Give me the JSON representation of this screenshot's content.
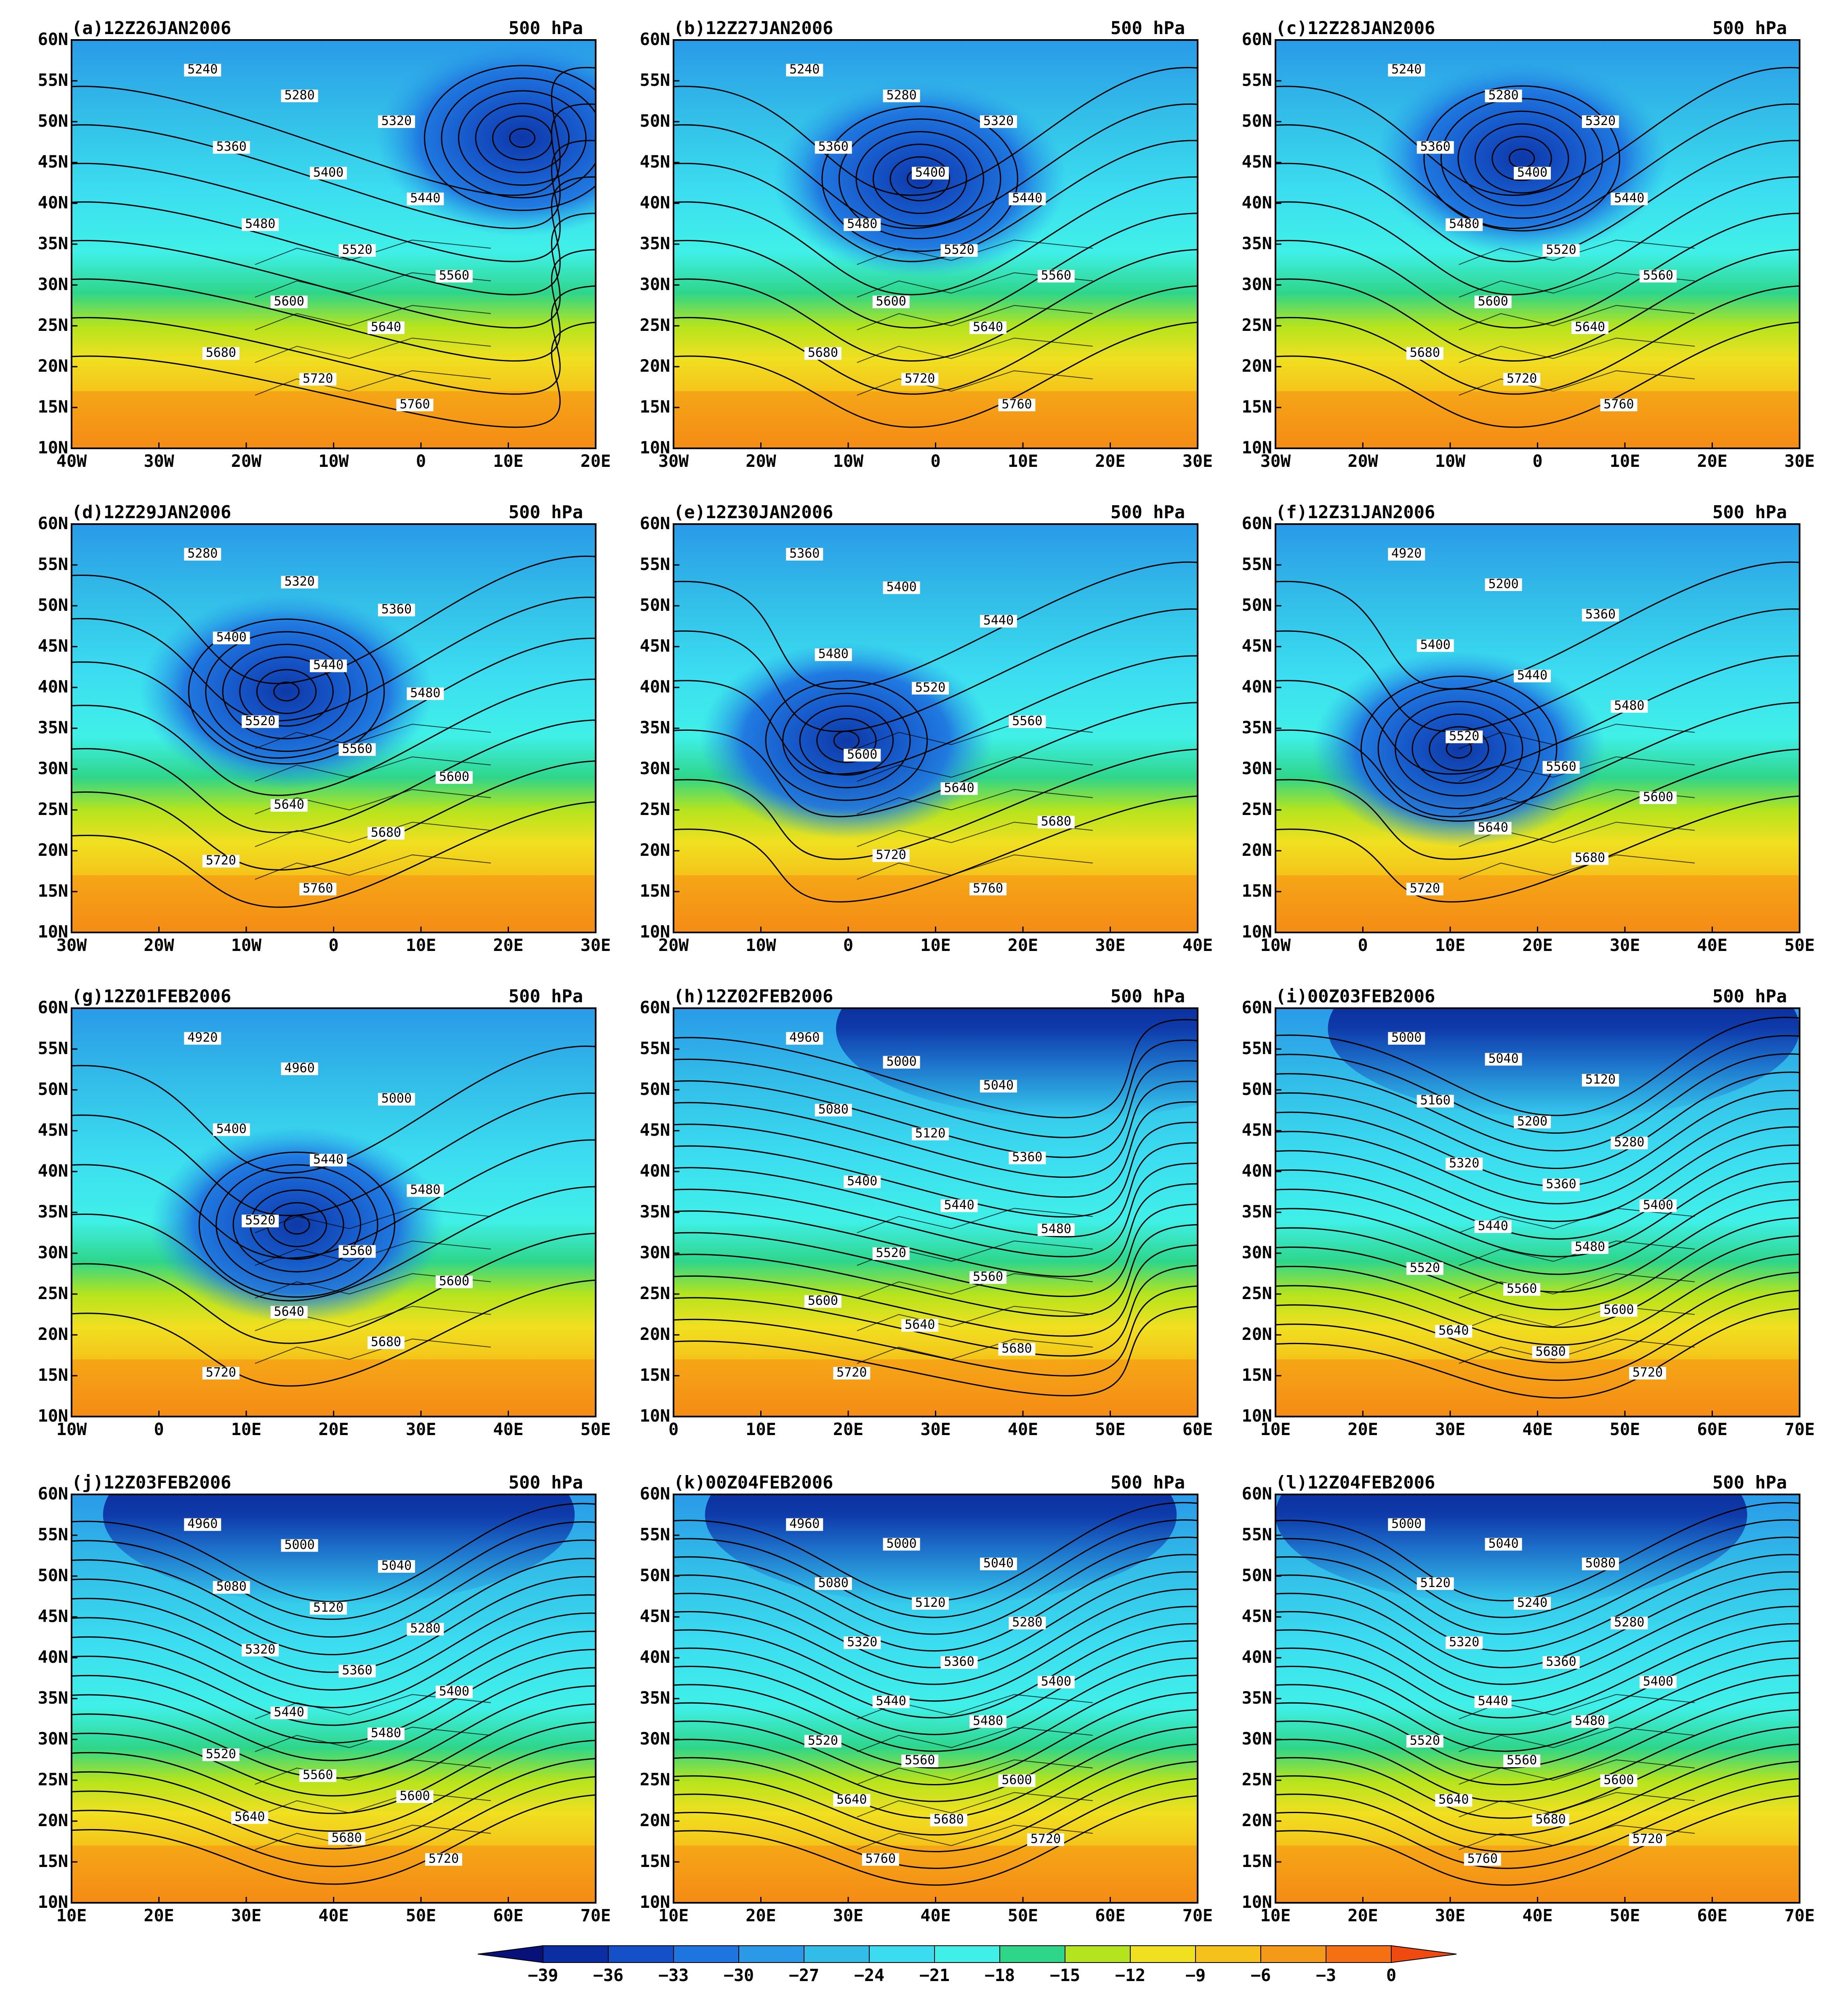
{
  "level": "500 hPa",
  "lat_labels": [
    "60N",
    "55N",
    "50N",
    "45N",
    "40N",
    "35N",
    "30N",
    "25N",
    "20N",
    "15N",
    "10N"
  ],
  "panels": [
    {
      "title": "(a)12Z26JAN2006",
      "lon_labels": [
        "40W",
        "30W",
        "20W",
        "10W",
        "0",
        "10E",
        "20E"
      ],
      "low": [
        0.86,
        0.24
      ],
      "ridge_x": 0.1,
      "contours": [
        "5240",
        "5280",
        "5320",
        "5360",
        "5400",
        "5440",
        "5480",
        "5520",
        "5560",
        "5600",
        "5640",
        "5680",
        "5720",
        "5760"
      ]
    },
    {
      "title": "(b)12Z27JAN2006",
      "lon_labels": [
        "30W",
        "20W",
        "10W",
        "0",
        "10E",
        "20E",
        "30E"
      ],
      "low": [
        0.47,
        0.34
      ],
      "ridge_x": 0.06,
      "contours": [
        "5240",
        "5280",
        "5320",
        "5360",
        "5400",
        "5440",
        "5480",
        "5520",
        "5560",
        "5600",
        "5640",
        "5680",
        "5720",
        "5760"
      ]
    },
    {
      "title": "(c)12Z28JAN2006",
      "lon_labels": [
        "30W",
        "20W",
        "10W",
        "0",
        "10E",
        "20E",
        "30E"
      ],
      "low": [
        0.47,
        0.29
      ],
      "ridge_x": 0.05,
      "contours": [
        "5240",
        "5280",
        "5320",
        "5360",
        "5400",
        "5440",
        "5480",
        "5520",
        "5560",
        "5600",
        "5640",
        "5680",
        "5720",
        "5760"
      ]
    },
    {
      "title": "(d)12Z29JAN2006",
      "lon_labels": [
        "30W",
        "20W",
        "10W",
        "0",
        "10E",
        "20E",
        "30E"
      ],
      "low": [
        0.41,
        0.41
      ],
      "ridge_x": 0.05,
      "contours": [
        "5280",
        "5320",
        "5360",
        "5400",
        "5440",
        "5480",
        "5520",
        "5560",
        "5600",
        "5640",
        "5680",
        "5720",
        "5760"
      ]
    },
    {
      "title": "(e)12Z30JAN2006",
      "lon_labels": [
        "20W",
        "10W",
        "0",
        "10E",
        "20E",
        "30E",
        "40E"
      ],
      "low": [
        0.33,
        0.53
      ],
      "ridge_x": 0.03,
      "contours": [
        "5360",
        "5400",
        "5440",
        "5480",
        "5520",
        "5560",
        "5600",
        "5640",
        "5680",
        "5720",
        "5760"
      ]
    },
    {
      "title": "(f)12Z31JAN2006",
      "lon_labels": [
        "10W",
        "0",
        "10E",
        "20E",
        "30E",
        "40E",
        "50E"
      ],
      "low": [
        0.35,
        0.55
      ],
      "ridge_x": 0.04,
      "contours": [
        "4920",
        "5200",
        "5360",
        "5400",
        "5440",
        "5480",
        "5520",
        "5560",
        "5600",
        "5640",
        "5680",
        "5720"
      ]
    },
    {
      "title": "(g)12Z01FEB2006",
      "lon_labels": [
        "10W",
        "0",
        "10E",
        "20E",
        "30E",
        "40E",
        "50E"
      ],
      "low": [
        0.43,
        0.53
      ],
      "ridge_x": 0.05,
      "contours": [
        "4920",
        "4960",
        "5000",
        "5400",
        "5440",
        "5480",
        "5520",
        "5560",
        "5600",
        "5640",
        "5680",
        "5720"
      ]
    },
    {
      "title": "(h)12Z02FEB2006",
      "lon_labels": [
        "0",
        "10E",
        "20E",
        "30E",
        "40E",
        "50E",
        "60E"
      ],
      "low": [
        0.76,
        0.12
      ],
      "ridge_x": 0.05,
      "contours": [
        "4960",
        "5000",
        "5040",
        "5080",
        "5120",
        "5360",
        "5400",
        "5440",
        "5480",
        "5520",
        "5560",
        "5600",
        "5640",
        "5680",
        "5720"
      ]
    },
    {
      "title": "(i)00Z03FEB2006",
      "lon_labels": [
        "10E",
        "20E",
        "30E",
        "40E",
        "50E",
        "60E",
        "70E"
      ],
      "low": [
        0.55,
        0.08
      ],
      "ridge_x": 0.05,
      "contours": [
        "5000",
        "5040",
        "5120",
        "5160",
        "5200",
        "5280",
        "5320",
        "5360",
        "5400",
        "5440",
        "5480",
        "5520",
        "5560",
        "5600",
        "5640",
        "5680",
        "5720"
      ]
    },
    {
      "title": "(j)12Z03FEB2006",
      "lon_labels": [
        "10E",
        "20E",
        "30E",
        "40E",
        "50E",
        "60E",
        "70E"
      ],
      "low": [
        0.51,
        0.06
      ],
      "ridge_x": 0.05,
      "contours": [
        "4960",
        "5000",
        "5040",
        "5080",
        "5120",
        "5280",
        "5320",
        "5360",
        "5400",
        "5440",
        "5480",
        "5520",
        "5560",
        "5600",
        "5640",
        "5680",
        "5720"
      ]
    },
    {
      "title": "(k)00Z04FEB2006",
      "lon_labels": [
        "10E",
        "20E",
        "30E",
        "40E",
        "50E",
        "60E",
        "70E"
      ],
      "low": [
        0.51,
        0.06
      ],
      "ridge_x": 0.05,
      "contours": [
        "4960",
        "5000",
        "5040",
        "5080",
        "5120",
        "5280",
        "5320",
        "5360",
        "5400",
        "5440",
        "5480",
        "5520",
        "5560",
        "5600",
        "5640",
        "5680",
        "5720",
        "5760"
      ]
    },
    {
      "title": "(l)12Z04FEB2006",
      "lon_labels": [
        "10E",
        "20E",
        "30E",
        "40E",
        "50E",
        "60E",
        "70E"
      ],
      "low": [
        0.45,
        0.08
      ],
      "ridge_x": 0.05,
      "contours": [
        "5000",
        "5040",
        "5080",
        "5120",
        "5240",
        "5280",
        "5320",
        "5360",
        "5400",
        "5440",
        "5480",
        "5520",
        "5560",
        "5600",
        "5640",
        "5680",
        "5720",
        "5760"
      ]
    }
  ],
  "colorbar": {
    "ticks": [
      "-39",
      "-36",
      "-33",
      "-30",
      "-27",
      "-24",
      "-21",
      "-18",
      "-15",
      "-12",
      "-9",
      "-6",
      "-3",
      "0"
    ],
    "colors": [
      "#08107a",
      "#0b2fa3",
      "#1450c8",
      "#1f75e0",
      "#2a9ae8",
      "#32bde8",
      "#3bdcf0",
      "#40f0e8",
      "#2ed68a",
      "#b4e41e",
      "#f0e020",
      "#f5c11a",
      "#f59a18",
      "#f57012",
      "#f04a10"
    ]
  }
}
